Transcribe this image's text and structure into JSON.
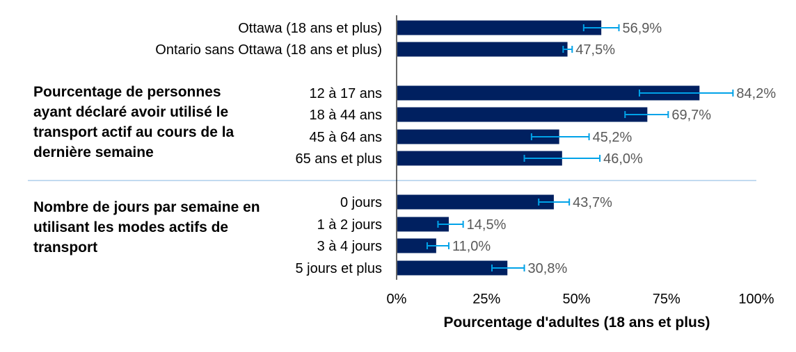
{
  "chart_data": {
    "type": "bar",
    "orientation": "horizontal",
    "xlabel": "Pourcentage d'adultes (18 ans et plus)",
    "xlim": [
      0,
      100
    ],
    "xticks": [
      "0%",
      "25%",
      "50%",
      "75%",
      "100%"
    ],
    "groups": [
      "Pourcentage de personnes ayant déclaré avoir utilisé le transport actif au cours de la dernière semaine",
      "Nombre de jours par semaine en utilisant les modes actifs de transport"
    ],
    "categories": [
      "Ottawa (18 ans et plus)",
      "Ontario sans Ottawa (18 ans et plus)",
      "12 à 17 ans",
      "18 à 44 ans",
      "45 à 64 ans",
      "65 ans et plus",
      "0 jours",
      "1 à 2 jours",
      "3 à 4 jours",
      "5 jours et plus"
    ],
    "values": [
      56.9,
      47.5,
      84.2,
      69.7,
      45.2,
      46.0,
      43.7,
      14.5,
      11.0,
      30.8
    ],
    "value_labels": [
      "56,9%",
      "47,5%",
      "84,2%",
      "69,7%",
      "45,2%",
      "46,0%",
      "43,7%",
      "14,5%",
      "11,0%",
      "30,8%"
    ],
    "error_low": [
      52.0,
      46.3,
      67.5,
      63.5,
      37.5,
      35.5,
      39.5,
      11.5,
      8.5,
      26.5
    ],
    "error_high": [
      61.8,
      48.8,
      93.5,
      75.5,
      53.5,
      56.5,
      48.0,
      18.5,
      14.5,
      35.5
    ],
    "colors": {
      "bar": "#002060",
      "error_bar": "#00A2E8",
      "value_label": "#595959",
      "divider": "#9DC3E6",
      "axis": "#000000"
    }
  }
}
